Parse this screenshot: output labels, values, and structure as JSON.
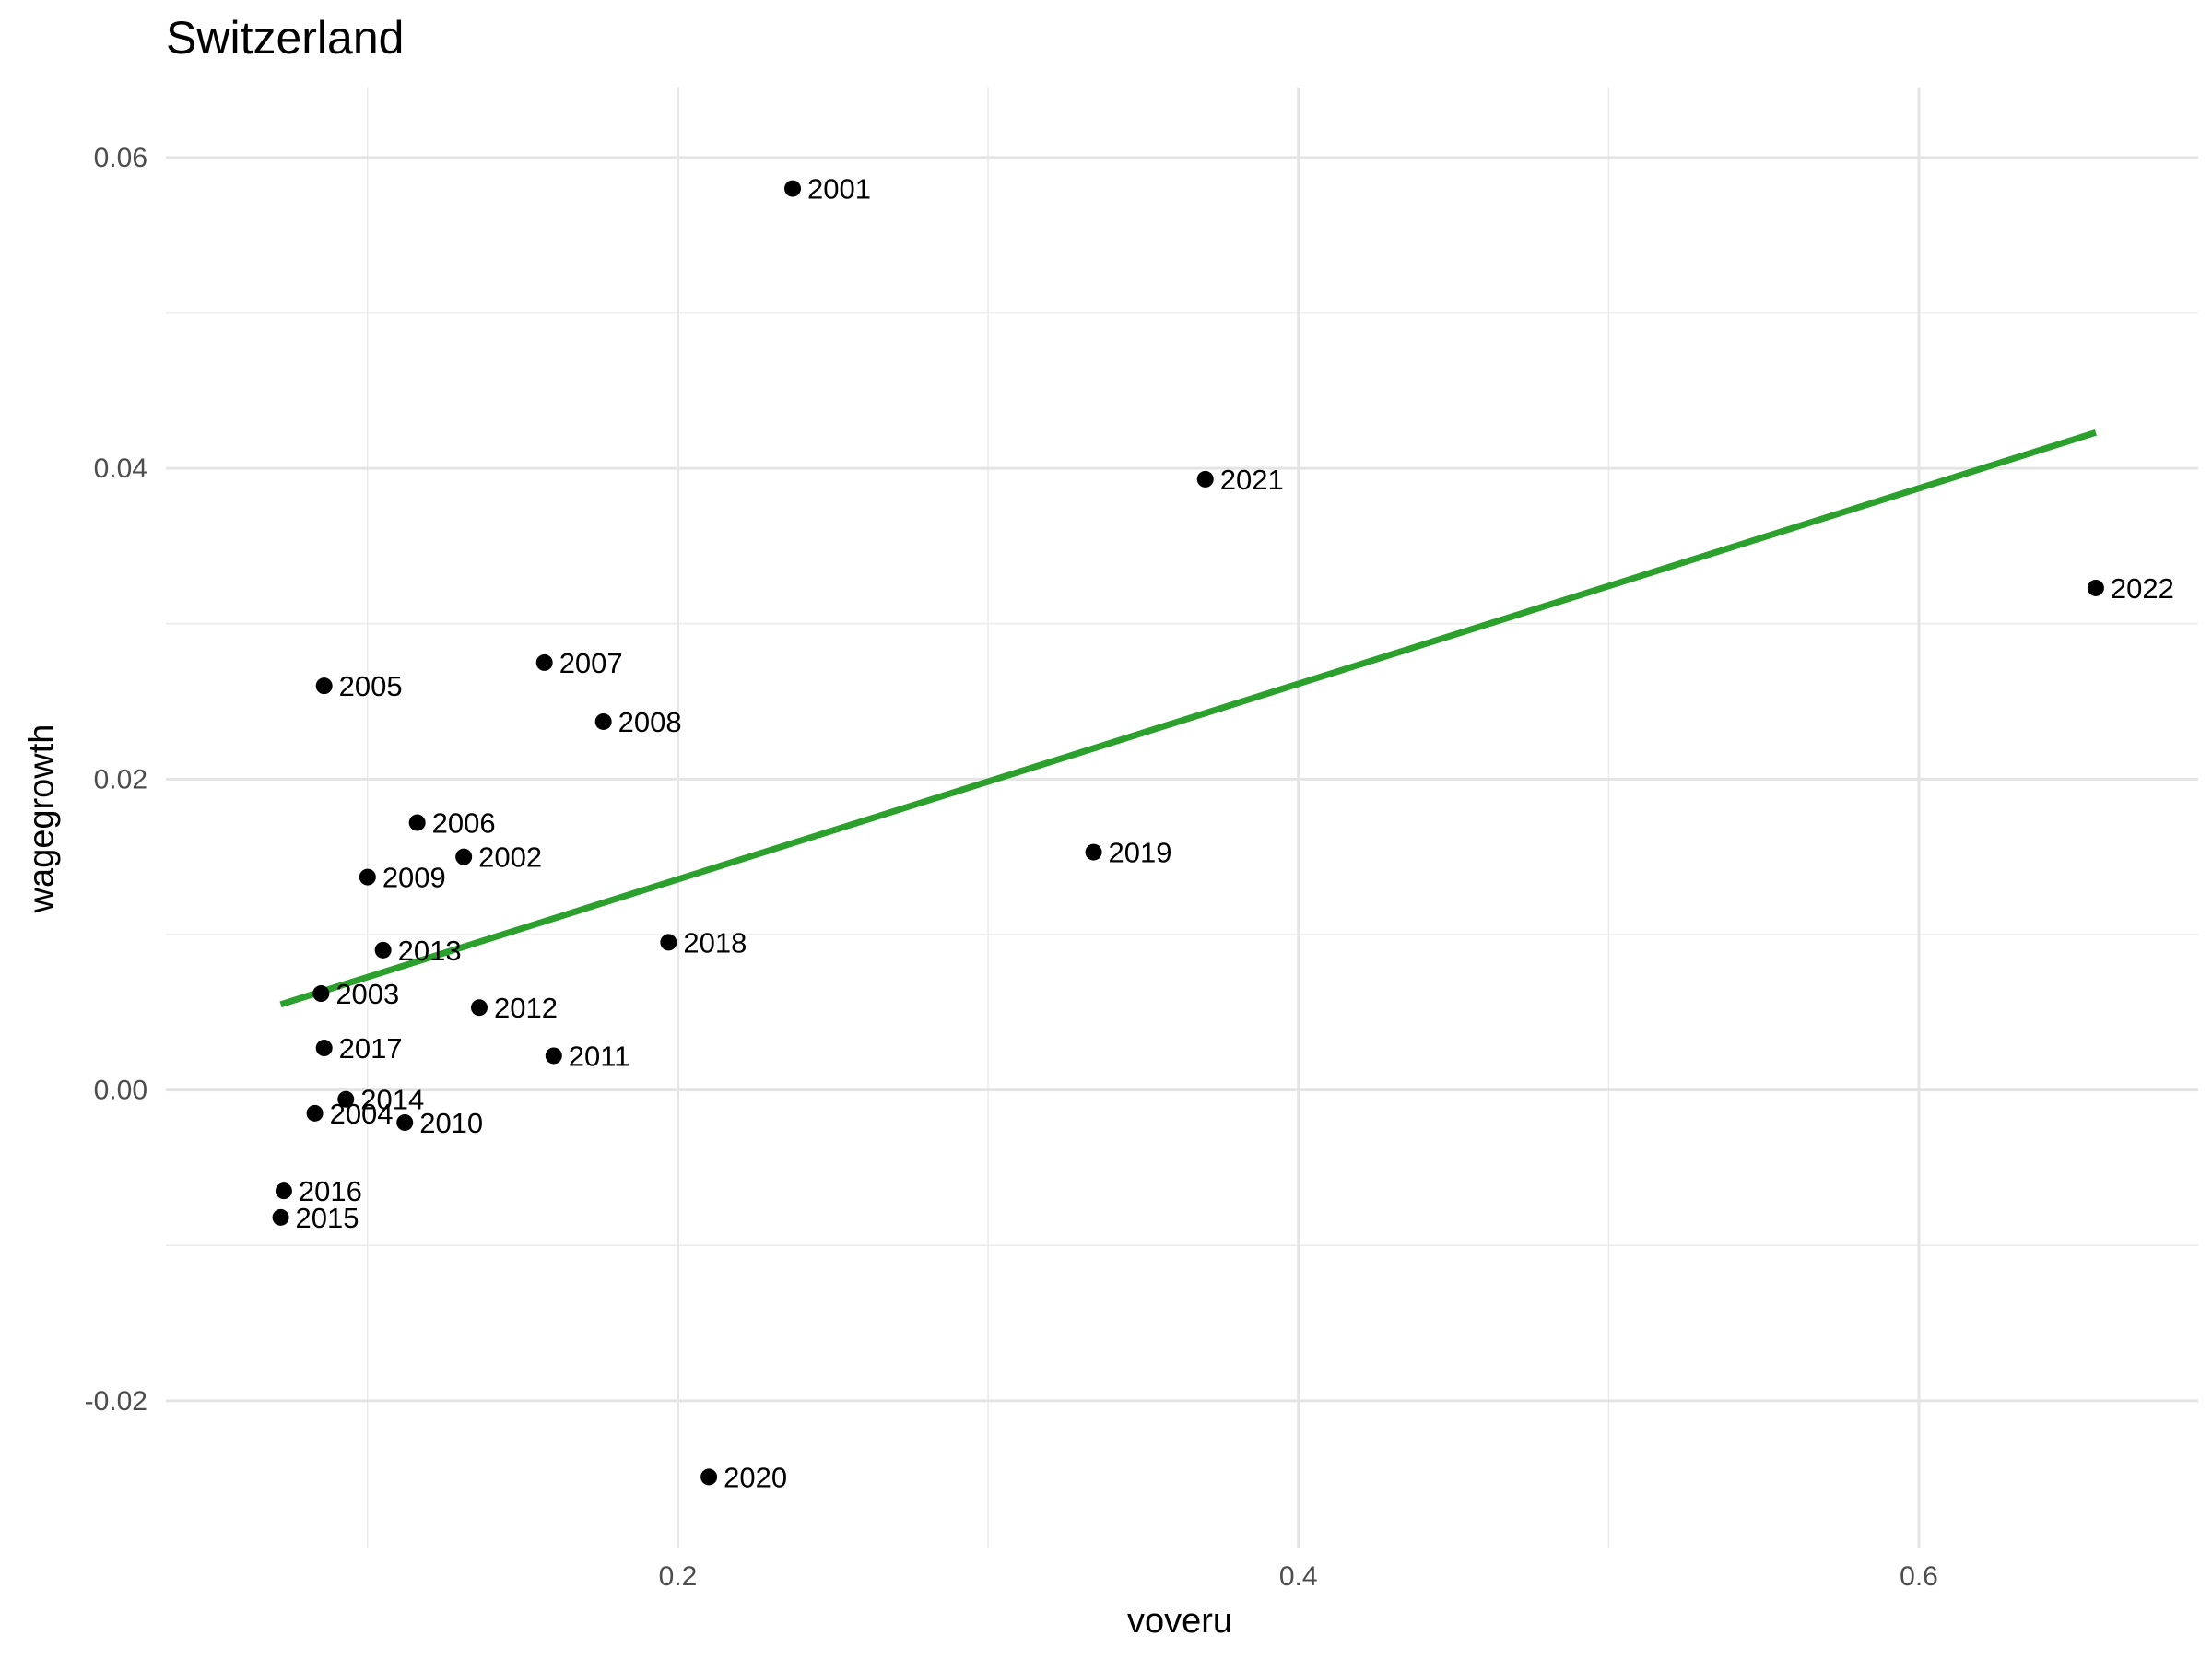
{
  "chart_data": {
    "type": "scatter",
    "title": "Switzerland",
    "xlabel": "voveru",
    "ylabel": "wagegrowth",
    "xlim": [
      0.035,
      0.69
    ],
    "ylim": [
      -0.0295,
      0.0645
    ],
    "x_ticks": [
      0.2,
      0.4,
      0.6
    ],
    "x_tick_labels": [
      "0.2",
      "0.4",
      "0.6"
    ],
    "y_ticks": [
      -0.02,
      0.0,
      0.02,
      0.04,
      0.06
    ],
    "y_tick_labels": [
      "-0.02",
      "0.00",
      "0.02",
      "0.04",
      "0.06"
    ],
    "grid": true,
    "point_color": "#000000",
    "trend_color": "#2ca02c",
    "points": [
      {
        "label": "2001",
        "x": 0.237,
        "y": 0.058
      },
      {
        "label": "2002",
        "x": 0.131,
        "y": 0.015
      },
      {
        "label": "2003",
        "x": 0.085,
        "y": 0.0062
      },
      {
        "label": "2004",
        "x": 0.083,
        "y": -0.0015
      },
      {
        "label": "2005",
        "x": 0.086,
        "y": 0.026
      },
      {
        "label": "2006",
        "x": 0.116,
        "y": 0.0172
      },
      {
        "label": "2007",
        "x": 0.157,
        "y": 0.0275
      },
      {
        "label": "2008",
        "x": 0.176,
        "y": 0.0237
      },
      {
        "label": "2009",
        "x": 0.1,
        "y": 0.0137
      },
      {
        "label": "2010",
        "x": 0.112,
        "y": -0.0021
      },
      {
        "label": "2011",
        "x": 0.16,
        "y": 0.0022
      },
      {
        "label": "2012",
        "x": 0.136,
        "y": 0.0053
      },
      {
        "label": "2013",
        "x": 0.105,
        "y": 0.009
      },
      {
        "label": "2014",
        "x": 0.093,
        "y": -0.0006
      },
      {
        "label": "2015",
        "x": 0.072,
        "y": -0.0082
      },
      {
        "label": "2016",
        "x": 0.073,
        "y": -0.0065
      },
      {
        "label": "2017",
        "x": 0.086,
        "y": 0.0027
      },
      {
        "label": "2018",
        "x": 0.197,
        "y": 0.0095
      },
      {
        "label": "2019",
        "x": 0.334,
        "y": 0.0153
      },
      {
        "label": "2020",
        "x": 0.21,
        "y": -0.0249
      },
      {
        "label": "2021",
        "x": 0.37,
        "y": 0.0393
      },
      {
        "label": "2022",
        "x": 0.657,
        "y": 0.0323
      }
    ],
    "trend_line": {
      "x": [
        0.072,
        0.657
      ],
      "y": [
        0.0055,
        0.0423
      ]
    }
  }
}
